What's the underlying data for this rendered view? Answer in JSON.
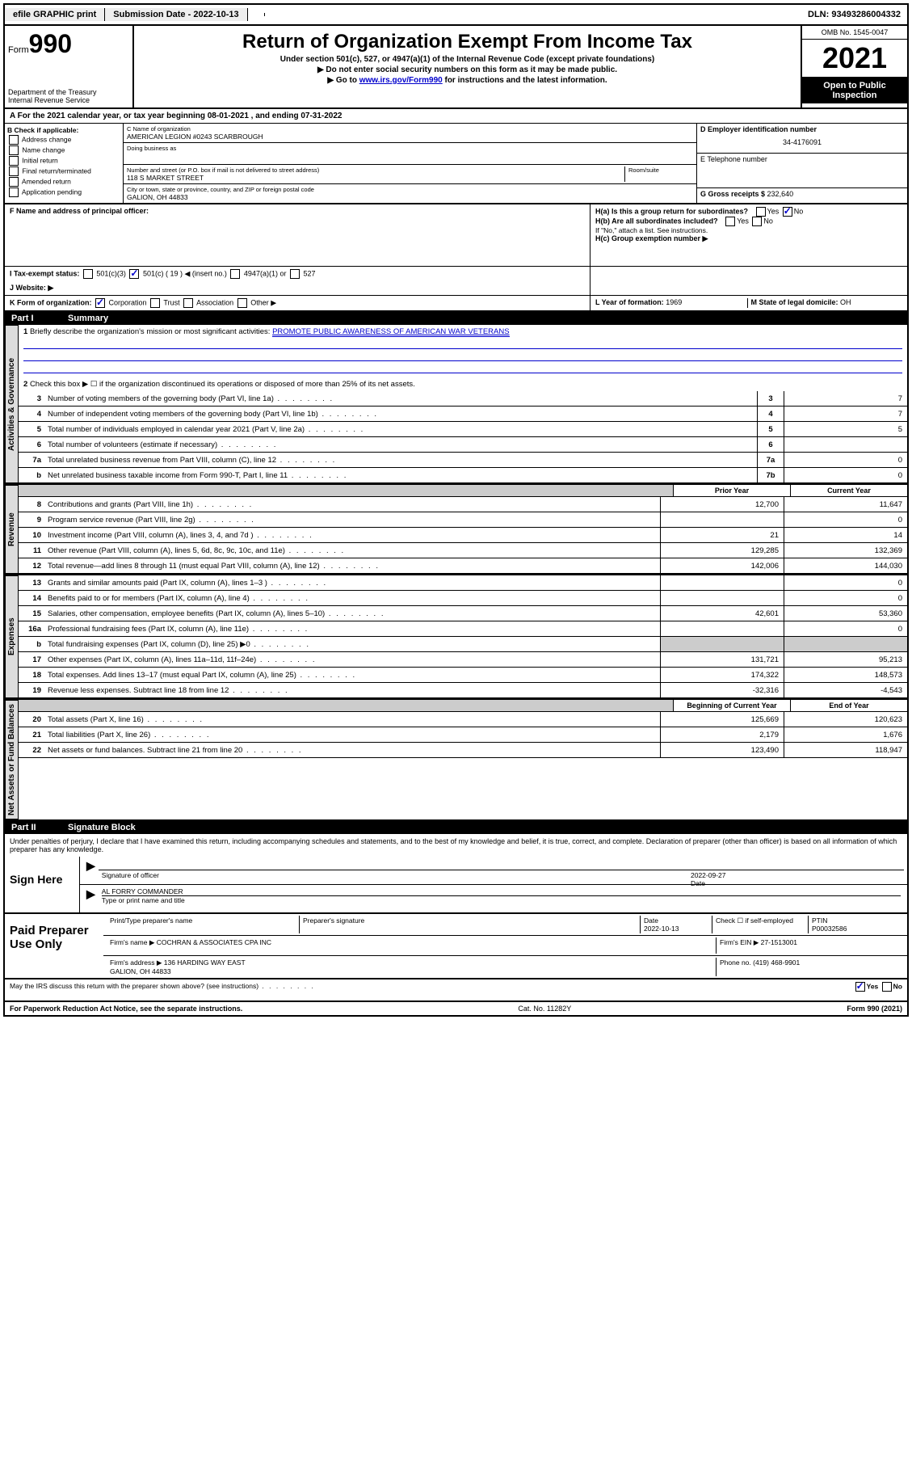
{
  "topbar": {
    "efile": "efile GRAPHIC print",
    "sub_label": "Submission Date - ",
    "sub_date": "2022-10-13",
    "dln": "DLN: 93493286004332"
  },
  "header": {
    "form_prefix": "Form",
    "form_num": "990",
    "dept": "Department of the Treasury\nInternal Revenue Service",
    "title": "Return of Organization Exempt From Income Tax",
    "sub1": "Under section 501(c), 527, or 4947(a)(1) of the Internal Revenue Code (except private foundations)",
    "sub2": "▶ Do not enter social security numbers on this form as it may be made public.",
    "sub3_pre": "▶ Go to ",
    "sub3_link": "www.irs.gov/Form990",
    "sub3_post": " for instructions and the latest information.",
    "omb": "OMB No. 1545-0047",
    "year": "2021",
    "open": "Open to Public Inspection"
  },
  "period": {
    "text_a": "A For the 2021 calendar year, or tax year beginning ",
    "begin": "08-01-2021",
    "text_b": " , and ending ",
    "end": "07-31-2022"
  },
  "box_b": {
    "label": "B Check if applicable:",
    "items": [
      "Address change",
      "Name change",
      "Initial return",
      "Final return/terminated",
      "Amended return",
      "Application pending"
    ]
  },
  "box_c": {
    "name_lbl": "C Name of organization",
    "name": "AMERICAN LEGION #0243 SCARBROUGH",
    "dba_lbl": "Doing business as",
    "dba": "",
    "addr_lbl": "Number and street (or P.O. box if mail is not delivered to street address)",
    "room_lbl": "Room/suite",
    "addr": "118 S MARKET STREET",
    "city_lbl": "City or town, state or province, country, and ZIP or foreign postal code",
    "city": "GALION, OH  44833"
  },
  "box_d": {
    "ein_lbl": "D Employer identification number",
    "ein": "34-4176091",
    "tel_lbl": "E Telephone number",
    "tel": "",
    "gross_lbl": "G Gross receipts $ ",
    "gross": "232,640"
  },
  "box_f": "F  Name and address of principal officer:",
  "box_h": {
    "ha": "H(a)  Is this a group return for subordinates?",
    "hb": "H(b)  Are all subordinates included?",
    "hb_note": "If \"No,\" attach a list. See instructions.",
    "hc": "H(c)  Group exemption number ▶"
  },
  "box_i": "I   Tax-exempt status:",
  "box_i_opts": {
    "a": "501(c)(3)",
    "b": "501(c) ( 19 ) ◀ (insert no.)",
    "c": "4947(a)(1) or",
    "d": "527"
  },
  "box_j": "J   Website: ▶",
  "box_k": "K Form of organization:",
  "box_k_opts": [
    "Corporation",
    "Trust",
    "Association",
    "Other ▶"
  ],
  "box_l": {
    "lbl": "L Year of formation: ",
    "val": "1969"
  },
  "box_m": {
    "lbl": "M State of legal domicile: ",
    "val": "OH"
  },
  "parts": {
    "p1": {
      "num": "Part I",
      "title": "Summary"
    },
    "p2": {
      "num": "Part II",
      "title": "Signature Block"
    }
  },
  "sides": {
    "gov": "Activities & Governance",
    "rev": "Revenue",
    "exp": "Expenses",
    "net": "Net Assets or Fund Balances"
  },
  "summary": {
    "line1": "Briefly describe the organization's mission or most significant activities:",
    "mission": "PROMOTE PUBLIC AWARENESS OF AMERICAN WAR VETERANS",
    "line2": "Check this box ▶ ☐  if the organization discontinued its operations or disposed of more than 25% of its net assets.",
    "lines_gov": [
      {
        "n": "3",
        "d": "Number of voting members of the governing body (Part VI, line 1a)",
        "b": "3",
        "v": "7"
      },
      {
        "n": "4",
        "d": "Number of independent voting members of the governing body (Part VI, line 1b)",
        "b": "4",
        "v": "7"
      },
      {
        "n": "5",
        "d": "Total number of individuals employed in calendar year 2021 (Part V, line 2a)",
        "b": "5",
        "v": "5"
      },
      {
        "n": "6",
        "d": "Total number of volunteers (estimate if necessary)",
        "b": "6",
        "v": ""
      },
      {
        "n": "7a",
        "d": "Total unrelated business revenue from Part VIII, column (C), line 12",
        "b": "7a",
        "v": "0"
      },
      {
        "n": "b",
        "d": "Net unrelated business taxable income from Form 990-T, Part I, line 11",
        "b": "7b",
        "v": "0"
      }
    ],
    "col_hdr": {
      "c1": "Prior Year",
      "c2": "Current Year"
    },
    "lines_rev": [
      {
        "n": "8",
        "d": "Contributions and grants (Part VIII, line 1h)",
        "p": "12,700",
        "c": "11,647"
      },
      {
        "n": "9",
        "d": "Program service revenue (Part VIII, line 2g)",
        "p": "",
        "c": "0"
      },
      {
        "n": "10",
        "d": "Investment income (Part VIII, column (A), lines 3, 4, and 7d )",
        "p": "21",
        "c": "14"
      },
      {
        "n": "11",
        "d": "Other revenue (Part VIII, column (A), lines 5, 6d, 8c, 9c, 10c, and 11e)",
        "p": "129,285",
        "c": "132,369"
      },
      {
        "n": "12",
        "d": "Total revenue—add lines 8 through 11 (must equal Part VIII, column (A), line 12)",
        "p": "142,006",
        "c": "144,030"
      }
    ],
    "lines_exp": [
      {
        "n": "13",
        "d": "Grants and similar amounts paid (Part IX, column (A), lines 1–3 )",
        "p": "",
        "c": "0"
      },
      {
        "n": "14",
        "d": "Benefits paid to or for members (Part IX, column (A), line 4)",
        "p": "",
        "c": "0"
      },
      {
        "n": "15",
        "d": "Salaries, other compensation, employee benefits (Part IX, column (A), lines 5–10)",
        "p": "42,601",
        "c": "53,360"
      },
      {
        "n": "16a",
        "d": "Professional fundraising fees (Part IX, column (A), line 11e)",
        "p": "",
        "c": "0"
      },
      {
        "n": "b",
        "d": "Total fundraising expenses (Part IX, column (D), line 25) ▶0",
        "p": "SHADE",
        "c": "SHADE"
      },
      {
        "n": "17",
        "d": "Other expenses (Part IX, column (A), lines 11a–11d, 11f–24e)",
        "p": "131,721",
        "c": "95,213"
      },
      {
        "n": "18",
        "d": "Total expenses. Add lines 13–17 (must equal Part IX, column (A), line 25)",
        "p": "174,322",
        "c": "148,573"
      },
      {
        "n": "19",
        "d": "Revenue less expenses. Subtract line 18 from line 12",
        "p": "-32,316",
        "c": "-4,543"
      }
    ],
    "col_hdr2": {
      "c1": "Beginning of Current Year",
      "c2": "End of Year"
    },
    "lines_net": [
      {
        "n": "20",
        "d": "Total assets (Part X, line 16)",
        "p": "125,669",
        "c": "120,623"
      },
      {
        "n": "21",
        "d": "Total liabilities (Part X, line 26)",
        "p": "2,179",
        "c": "1,676"
      },
      {
        "n": "22",
        "d": "Net assets or fund balances. Subtract line 21 from line 20",
        "p": "123,490",
        "c": "118,947"
      }
    ]
  },
  "sig": {
    "decl": "Under penalties of perjury, I declare that I have examined this return, including accompanying schedules and statements, and to the best of my knowledge and belief, it is true, correct, and complete. Declaration of preparer (other than officer) is based on all information of which preparer has any knowledge.",
    "sign_here": "Sign Here",
    "sig_officer": "Signature of officer",
    "date_lbl": "Date",
    "date": "2022-09-27",
    "name": "AL FORRY COMMANDER",
    "name_lbl": "Type or print name and title",
    "paid": "Paid Preparer Use Only",
    "prep_name_lbl": "Print/Type preparer's name",
    "prep_sig_lbl": "Preparer's signature",
    "prep_date_lbl": "Date",
    "prep_date": "2022-10-13",
    "check_lbl": "Check ☐ if self-employed",
    "ptin_lbl": "PTIN",
    "ptin": "P00032586",
    "firm_name_lbl": "Firm's name   ▶ ",
    "firm_name": "COCHRAN & ASSOCIATES CPA INC",
    "firm_ein_lbl": "Firm's EIN ▶ ",
    "firm_ein": "27-1513001",
    "firm_addr_lbl": "Firm's address ▶ ",
    "firm_addr": "136 HARDING WAY EAST",
    "firm_city": "GALION, OH  44833",
    "phone_lbl": "Phone no. ",
    "phone": "(419) 468-9901",
    "may": "May the IRS discuss this return with the preparer shown above? (see instructions)",
    "yes": "Yes",
    "no": "No"
  },
  "footer": {
    "left": "For Paperwork Reduction Act Notice, see the separate instructions.",
    "mid": "Cat. No. 11282Y",
    "right": "Form 990 (2021)"
  }
}
